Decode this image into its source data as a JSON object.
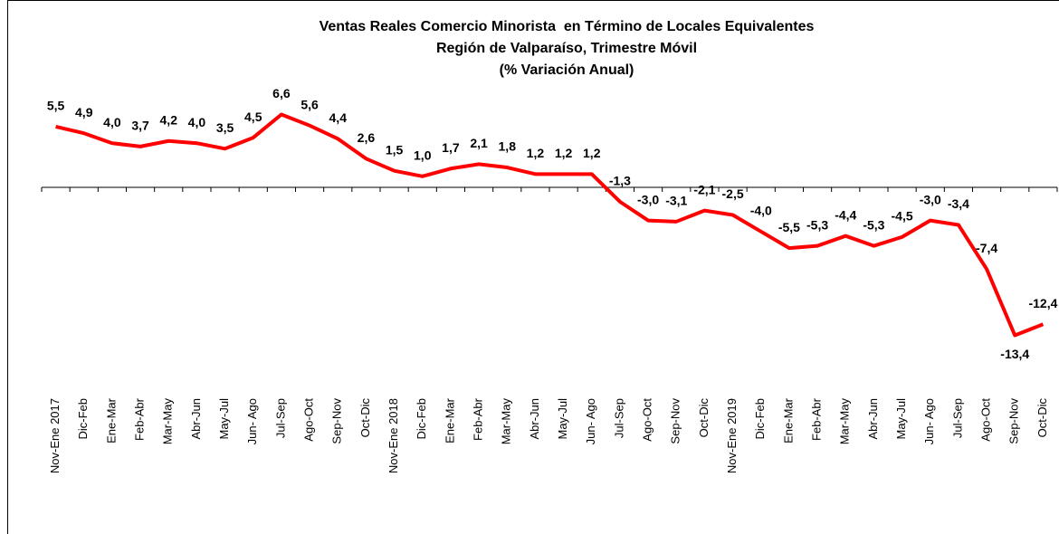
{
  "chart_data": {
    "type": "line",
    "title": [
      "Ventas Reales Comercio Minorista  en Término de Locales Equivalentes",
      "Región de Valparaíso, Trimestre Móvil",
      "(% Variación Anual)"
    ],
    "categories": [
      "Nov-Ene 2017",
      "Dic-Feb",
      "Ene-Mar",
      "Feb-Abr",
      "Mar-May",
      "Abr-Jun",
      "May-Jul",
      "Jun- Ago",
      "Jul-Sep",
      "Ago-Oct",
      "Sep-Nov",
      "Oct-Dic",
      "Nov-Ene 2018",
      "Dic-Feb",
      "Ene-Mar",
      "Feb-Abr",
      "Mar-May",
      "Abr-Jun",
      "May-Jul",
      "Jun- Ago",
      "Jul-Sep",
      "Ago-Oct",
      "Sep-Nov",
      "Oct-Dic",
      "Nov-Ene 2019",
      "Dic-Feb",
      "Ene-Mar",
      "Feb-Abr",
      "Mar-May",
      "Abr-Jun",
      "May-Jul",
      "Jun- Ago",
      "Jul-Sep",
      "Ago-Oct",
      "Sep-Nov",
      "Oct-Dic"
    ],
    "values": [
      5.5,
      4.9,
      4.0,
      3.7,
      4.2,
      4.0,
      3.5,
      4.5,
      6.6,
      5.6,
      4.4,
      2.6,
      1.5,
      1.0,
      1.7,
      2.1,
      1.8,
      1.2,
      1.2,
      1.2,
      -1.3,
      -3.0,
      -3.1,
      -2.1,
      -2.5,
      -4.0,
      -5.5,
      -5.3,
      -4.4,
      -5.3,
      -4.5,
      -3.0,
      -3.4,
      -7.4,
      -13.4,
      -12.4
    ],
    "value_labels": [
      "5,5",
      "4,9",
      "4,0",
      "3,7",
      "4,2",
      "4,0",
      "3,5",
      "4,5",
      "6,6",
      "5,6",
      "4,4",
      "2,6",
      "1,5",
      "1,0",
      "1,7",
      "2,1",
      "1,8",
      "1,2",
      "1,2",
      "1,2",
      "-1,3",
      "-3,0",
      "-3,1",
      "-2,1",
      "-2,5",
      "-4,0",
      "-5,5",
      "-5,3",
      "-4,4",
      "-5,3",
      "-4,5",
      "-3,0",
      "-3,4",
      "-7,4",
      "-13,4",
      "-12,4"
    ],
    "color": "#ff0000",
    "ylim": [
      -15,
      10
    ]
  }
}
